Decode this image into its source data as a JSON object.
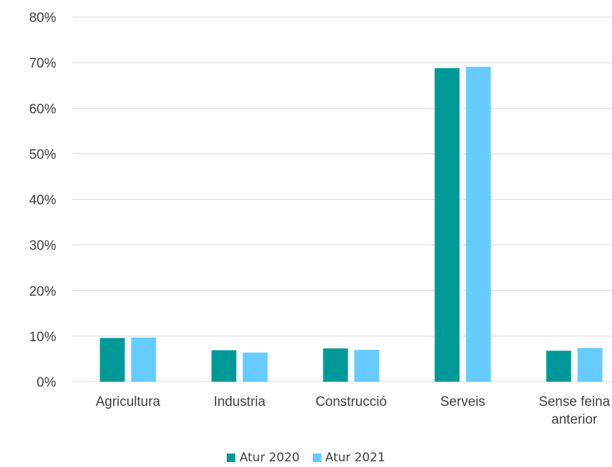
{
  "chart_data": {
    "type": "bar",
    "categories": [
      [
        "Agricultura"
      ],
      [
        "Industria"
      ],
      [
        "Construcció"
      ],
      [
        "Serveis"
      ],
      [
        "Sense feina",
        "anterior"
      ]
    ],
    "series": [
      {
        "name": "Atur 2020",
        "color": "#009999",
        "values": [
          9.6,
          6.9,
          7.3,
          68.8,
          6.8
        ]
      },
      {
        "name": "Atur 2021",
        "color": "#66ccff",
        "values": [
          9.7,
          6.4,
          7.0,
          69.1,
          7.4
        ]
      }
    ],
    "yticks": [
      "0%",
      "10%",
      "20%",
      "30%",
      "40%",
      "50%",
      "60%",
      "70%",
      "80%"
    ],
    "ylim": [
      0,
      80
    ],
    "grid": true,
    "legend_position": "bottom"
  }
}
